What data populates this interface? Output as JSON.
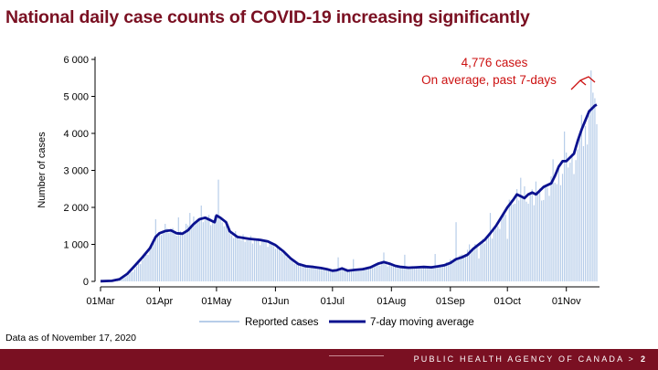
{
  "slide": {
    "title": "National daily case counts of COVID-19 increasing significantly",
    "footnote": "Data as of November 17, 2020",
    "agency": "PUBLIC HEALTH AGENCY OF CANADA",
    "page_marker": ">",
    "page_number": "2"
  },
  "colors": {
    "title": "#7a1022",
    "bar": "#b7cde9",
    "line": "#0b128f",
    "annotation": "#cc1111",
    "footer": "#7a1022"
  },
  "chart_data": {
    "type": "bar",
    "ylabel": "Number of cases",
    "ylim": [
      0,
      6000
    ],
    "yticks": [
      0,
      1000,
      2000,
      3000,
      4000,
      5000,
      6000
    ],
    "ytick_labels": [
      "0",
      "1 000",
      "2 000",
      "3 000",
      "4 000",
      "5 000",
      "6 000"
    ],
    "xlim_day": [
      0,
      261
    ],
    "xticks": [
      {
        "day": 0,
        "label": "01Mar"
      },
      {
        "day": 31,
        "label": "01Apr"
      },
      {
        "day": 61,
        "label": "01May"
      },
      {
        "day": 92,
        "label": "01Jun"
      },
      {
        "day": 122,
        "label": "01Jul"
      },
      {
        "day": 153,
        "label": "01Aug"
      },
      {
        "day": 184,
        "label": "01Sep"
      },
      {
        "day": 214,
        "label": "01Oct"
      },
      {
        "day": 245,
        "label": "01Nov"
      }
    ],
    "series_names": [
      "Reported cases",
      "7-day moving average"
    ],
    "legend_position": "bottom-center",
    "annotation": {
      "lines": [
        "4,776 cases",
        "On average, past 7-days"
      ],
      "day": 261,
      "value": 4776
    },
    "anchors_reported": [
      [
        0,
        5
      ],
      [
        8,
        20
      ],
      [
        12,
        80
      ],
      [
        16,
        220
      ],
      [
        20,
        450
      ],
      [
        24,
        700
      ],
      [
        28,
        1050
      ],
      [
        31,
        1250
      ],
      [
        34,
        1450
      ],
      [
        38,
        1350
      ],
      [
        42,
        1300
      ],
      [
        46,
        1500
      ],
      [
        50,
        1650
      ],
      [
        54,
        1720
      ],
      [
        58,
        1680
      ],
      [
        61,
        1720
      ],
      [
        64,
        1550
      ],
      [
        68,
        1300
      ],
      [
        74,
        1150
      ],
      [
        80,
        1130
      ],
      [
        86,
        1080
      ],
      [
        92,
        950
      ],
      [
        96,
        780
      ],
      [
        100,
        570
      ],
      [
        104,
        450
      ],
      [
        108,
        400
      ],
      [
        112,
        370
      ],
      [
        116,
        340
      ],
      [
        120,
        320
      ],
      [
        124,
        310
      ],
      [
        130,
        300
      ],
      [
        136,
        320
      ],
      [
        142,
        390
      ],
      [
        146,
        480
      ],
      [
        150,
        460
      ],
      [
        153,
        420
      ],
      [
        158,
        390
      ],
      [
        164,
        380
      ],
      [
        170,
        380
      ],
      [
        176,
        400
      ],
      [
        180,
        440
      ],
      [
        184,
        520
      ],
      [
        188,
        640
      ],
      [
        192,
        760
      ],
      [
        196,
        900
      ],
      [
        200,
        1050
      ],
      [
        204,
        1180
      ],
      [
        208,
        1380
      ],
      [
        212,
        1750
      ],
      [
        216,
        2100
      ],
      [
        220,
        2300
      ],
      [
        224,
        2350
      ],
      [
        228,
        2300
      ],
      [
        232,
        2450
      ],
      [
        236,
        2550
      ],
      [
        240,
        2800
      ],
      [
        244,
        3100
      ],
      [
        248,
        3400
      ],
      [
        252,
        3700
      ],
      [
        256,
        4300
      ],
      [
        259,
        4900
      ],
      [
        261,
        4400
      ]
    ],
    "spikes": [
      [
        29,
        1680
      ],
      [
        41,
        1730
      ],
      [
        47,
        1850
      ],
      [
        53,
        2050
      ],
      [
        59,
        1600
      ],
      [
        62,
        2750
      ],
      [
        66,
        1500
      ],
      [
        125,
        650
      ],
      [
        133,
        600
      ],
      [
        149,
        780
      ],
      [
        160,
        720
      ],
      [
        176,
        740
      ],
      [
        184,
        600
      ],
      [
        187,
        1600
      ],
      [
        194,
        1000
      ],
      [
        199,
        620
      ],
      [
        205,
        1850
      ],
      [
        214,
        1150
      ],
      [
        216,
        2200
      ],
      [
        221,
        2800
      ],
      [
        225,
        2100
      ],
      [
        229,
        2700
      ],
      [
        233,
        2200
      ],
      [
        238,
        3300
      ],
      [
        242,
        2600
      ],
      [
        244,
        4050
      ],
      [
        249,
        2900
      ],
      [
        253,
        4500
      ],
      [
        256,
        3700
      ],
      [
        258,
        5700
      ],
      [
        260,
        4950
      ],
      [
        261,
        4250
      ]
    ],
    "anchors_moving_average": [
      [
        0,
        5
      ],
      [
        6,
        15
      ],
      [
        10,
        60
      ],
      [
        14,
        200
      ],
      [
        18,
        420
      ],
      [
        22,
        650
      ],
      [
        26,
        900
      ],
      [
        29,
        1200
      ],
      [
        31,
        1300
      ],
      [
        34,
        1360
      ],
      [
        37,
        1380
      ],
      [
        40,
        1300
      ],
      [
        43,
        1290
      ],
      [
        46,
        1380
      ],
      [
        49,
        1550
      ],
      [
        52,
        1680
      ],
      [
        55,
        1720
      ],
      [
        58,
        1650
      ],
      [
        60,
        1600
      ],
      [
        61,
        1780
      ],
      [
        63,
        1720
      ],
      [
        66,
        1600
      ],
      [
        68,
        1350
      ],
      [
        72,
        1200
      ],
      [
        78,
        1150
      ],
      [
        84,
        1120
      ],
      [
        88,
        1080
      ],
      [
        92,
        980
      ],
      [
        96,
        820
      ],
      [
        100,
        620
      ],
      [
        104,
        470
      ],
      [
        108,
        410
      ],
      [
        112,
        390
      ],
      [
        116,
        360
      ],
      [
        119,
        330
      ],
      [
        122,
        290
      ],
      [
        124,
        300
      ],
      [
        127,
        350
      ],
      [
        130,
        290
      ],
      [
        134,
        310
      ],
      [
        138,
        330
      ],
      [
        142,
        380
      ],
      [
        146,
        480
      ],
      [
        149,
        520
      ],
      [
        152,
        480
      ],
      [
        155,
        420
      ],
      [
        158,
        390
      ],
      [
        162,
        370
      ],
      [
        166,
        380
      ],
      [
        170,
        390
      ],
      [
        174,
        380
      ],
      [
        178,
        410
      ],
      [
        181,
        440
      ],
      [
        184,
        500
      ],
      [
        187,
        600
      ],
      [
        190,
        650
      ],
      [
        193,
        720
      ],
      [
        196,
        880
      ],
      [
        199,
        1000
      ],
      [
        202,
        1120
      ],
      [
        205,
        1300
      ],
      [
        208,
        1500
      ],
      [
        211,
        1750
      ],
      [
        214,
        2000
      ],
      [
        217,
        2200
      ],
      [
        219,
        2350
      ],
      [
        221,
        2300
      ],
      [
        223,
        2250
      ],
      [
        225,
        2350
      ],
      [
        227,
        2400
      ],
      [
        229,
        2350
      ],
      [
        231,
        2450
      ],
      [
        233,
        2550
      ],
      [
        235,
        2600
      ],
      [
        237,
        2650
      ],
      [
        239,
        2850
      ],
      [
        241,
        3100
      ],
      [
        243,
        3250
      ],
      [
        245,
        3250
      ],
      [
        247,
        3350
      ],
      [
        249,
        3450
      ],
      [
        251,
        3800
      ],
      [
        253,
        4100
      ],
      [
        255,
        4350
      ],
      [
        257,
        4600
      ],
      [
        259,
        4700
      ],
      [
        260,
        4750
      ],
      [
        261,
        4776
      ]
    ]
  }
}
